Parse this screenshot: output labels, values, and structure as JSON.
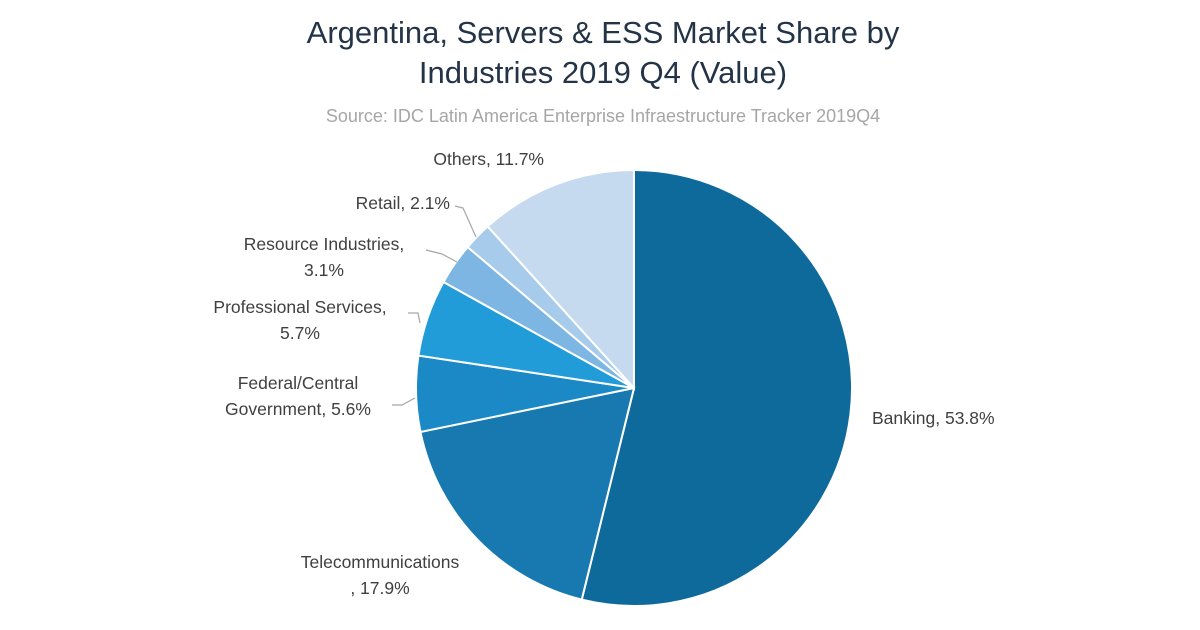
{
  "chart_data": {
    "type": "pie",
    "title_lines": [
      "Argentina, Servers & ESS Market Share by",
      "Industries 2019 Q4 (Value)"
    ],
    "subtitle": "Source: IDC Latin America Enterprise Infraestructure Tracker 2019Q4",
    "start_angle_deg": 0,
    "direction": "clockwise",
    "slices": [
      {
        "name": "Banking",
        "value": 53.8,
        "color": "#0f6a9c",
        "label_lines": [
          "Banking, 53.8%"
        ]
      },
      {
        "name": "Telecommunications",
        "value": 17.9,
        "color": "#1779b0",
        "label_lines": [
          "Telecommunications",
          ", 17.9%"
        ]
      },
      {
        "name": "Federal/Central Government",
        "value": 5.6,
        "color": "#1a89c6",
        "label_lines": [
          "Federal/Central",
          "Government, 5.6%"
        ]
      },
      {
        "name": "Professional Services",
        "value": 5.7,
        "color": "#229bd9",
        "label_lines": [
          "Professional Services,",
          "5.7%"
        ]
      },
      {
        "name": "Resource Industries",
        "value": 3.1,
        "color": "#7db6e2",
        "label_lines": [
          "Resource Industries,",
          "3.1%"
        ]
      },
      {
        "name": "Retail",
        "value": 2.1,
        "color": "#a6cbeb",
        "label_lines": [
          "Retail, 2.1%"
        ]
      },
      {
        "name": "Others",
        "value": 11.7,
        "color": "#c5daef",
        "label_lines": [
          "Others, 11.7%"
        ]
      }
    ],
    "slice_border_color": "#ffffff",
    "leader_line_color": "#a6a6a6"
  }
}
